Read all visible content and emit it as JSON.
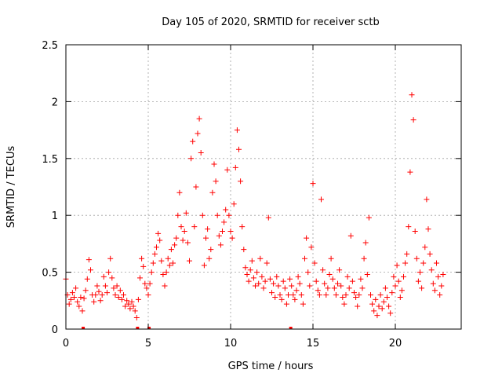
{
  "chart_data": {
    "type": "scatter",
    "title": "Day 105 of 2020, SRMTID for receiver sctb",
    "xlabel": "GPS time / hours",
    "ylabel": "SRMTID / TECUs",
    "xlim": [
      0,
      24
    ],
    "ylim": [
      0,
      2.5
    ],
    "xticks": [
      0,
      5,
      10,
      15,
      20
    ],
    "yticks": [
      0,
      0.5,
      1,
      1.5,
      2,
      2.5
    ],
    "grid": true,
    "marker": "plus",
    "color": "#ff0000",
    "series": [
      {
        "name": "sctb",
        "points": [
          [
            0.0,
            0.44
          ],
          [
            0.1,
            0.3
          ],
          [
            0.2,
            0.22
          ],
          [
            0.3,
            0.26
          ],
          [
            0.4,
            0.32
          ],
          [
            0.5,
            0.28
          ],
          [
            0.6,
            0.36
          ],
          [
            0.7,
            0.24
          ],
          [
            0.8,
            0.2
          ],
          [
            0.9,
            0.28
          ],
          [
            1.0,
            0.16
          ],
          [
            1.1,
            0.27
          ],
          [
            1.2,
            0.34
          ],
          [
            1.3,
            0.44
          ],
          [
            1.4,
            0.61
          ],
          [
            1.5,
            0.52
          ],
          [
            1.6,
            0.3
          ],
          [
            1.7,
            0.24
          ],
          [
            1.8,
            0.3
          ],
          [
            1.9,
            0.38
          ],
          [
            2.0,
            0.33
          ],
          [
            2.1,
            0.25
          ],
          [
            2.2,
            0.3
          ],
          [
            2.3,
            0.46
          ],
          [
            2.4,
            0.38
          ],
          [
            2.5,
            0.32
          ],
          [
            2.6,
            0.5
          ],
          [
            2.7,
            0.62
          ],
          [
            2.8,
            0.45
          ],
          [
            2.9,
            0.36
          ],
          [
            3.0,
            0.3
          ],
          [
            3.1,
            0.38
          ],
          [
            3.2,
            0.28
          ],
          [
            3.3,
            0.34
          ],
          [
            3.4,
            0.26
          ],
          [
            3.5,
            0.3
          ],
          [
            3.6,
            0.2
          ],
          [
            3.7,
            0.25
          ],
          [
            3.8,
            0.22
          ],
          [
            3.9,
            0.18
          ],
          [
            4.0,
            0.24
          ],
          [
            4.1,
            0.2
          ],
          [
            4.2,
            0.16
          ],
          [
            4.3,
            0.1
          ],
          [
            4.4,
            0.26
          ],
          [
            4.5,
            0.45
          ],
          [
            4.6,
            0.62
          ],
          [
            4.7,
            0.55
          ],
          [
            4.8,
            0.4
          ],
          [
            4.9,
            0.36
          ],
          [
            5.0,
            0.3
          ],
          [
            5.1,
            0.4
          ],
          [
            5.2,
            0.5
          ],
          [
            5.3,
            0.58
          ],
          [
            5.4,
            0.66
          ],
          [
            5.5,
            0.72
          ],
          [
            5.6,
            0.84
          ],
          [
            5.7,
            0.78
          ],
          [
            5.8,
            0.6
          ],
          [
            5.9,
            0.48
          ],
          [
            6.0,
            0.38
          ],
          [
            6.1,
            0.5
          ],
          [
            6.2,
            0.62
          ],
          [
            6.3,
            0.56
          ],
          [
            6.4,
            0.7
          ],
          [
            6.5,
            0.58
          ],
          [
            6.6,
            0.74
          ],
          [
            6.7,
            0.8
          ],
          [
            6.8,
            1.0
          ],
          [
            6.9,
            1.2
          ],
          [
            7.0,
            0.9
          ],
          [
            7.1,
            0.78
          ],
          [
            7.2,
            0.86
          ],
          [
            7.3,
            1.02
          ],
          [
            7.4,
            0.76
          ],
          [
            7.5,
            0.6
          ],
          [
            7.6,
            1.5
          ],
          [
            7.7,
            1.65
          ],
          [
            7.8,
            0.9
          ],
          [
            7.9,
            1.25
          ],
          [
            8.0,
            1.72
          ],
          [
            8.1,
            1.85
          ],
          [
            8.2,
            1.55
          ],
          [
            8.3,
            1.0
          ],
          [
            8.4,
            0.56
          ],
          [
            8.5,
            0.8
          ],
          [
            8.6,
            0.88
          ],
          [
            8.7,
            0.62
          ],
          [
            8.8,
            0.7
          ],
          [
            8.9,
            1.2
          ],
          [
            9.0,
            1.45
          ],
          [
            9.1,
            1.3
          ],
          [
            9.2,
            1.0
          ],
          [
            9.3,
            0.82
          ],
          [
            9.4,
            0.74
          ],
          [
            9.5,
            0.86
          ],
          [
            9.6,
            0.94
          ],
          [
            9.7,
            1.05
          ],
          [
            9.8,
            1.4
          ],
          [
            9.9,
            1.0
          ],
          [
            10.0,
            0.86
          ],
          [
            10.1,
            0.8
          ],
          [
            10.2,
            1.1
          ],
          [
            10.3,
            1.42
          ],
          [
            10.4,
            1.75
          ],
          [
            10.5,
            1.58
          ],
          [
            10.6,
            1.3
          ],
          [
            10.7,
            0.9
          ],
          [
            10.8,
            0.7
          ],
          [
            10.9,
            0.54
          ],
          [
            11.0,
            0.48
          ],
          [
            11.1,
            0.42
          ],
          [
            11.2,
            0.52
          ],
          [
            11.3,
            0.6
          ],
          [
            11.4,
            0.45
          ],
          [
            11.5,
            0.38
          ],
          [
            11.6,
            0.5
          ],
          [
            11.7,
            0.4
          ],
          [
            11.8,
            0.62
          ],
          [
            11.9,
            0.46
          ],
          [
            12.0,
            0.36
          ],
          [
            12.1,
            0.42
          ],
          [
            12.2,
            0.58
          ],
          [
            12.3,
            0.98
          ],
          [
            12.4,
            0.44
          ],
          [
            12.5,
            0.32
          ],
          [
            12.6,
            0.4
          ],
          [
            12.7,
            0.28
          ],
          [
            12.8,
            0.46
          ],
          [
            12.9,
            0.38
          ],
          [
            13.0,
            0.3
          ],
          [
            13.1,
            0.26
          ],
          [
            13.2,
            0.42
          ],
          [
            13.3,
            0.36
          ],
          [
            13.4,
            0.22
          ],
          [
            13.5,
            0.3
          ],
          [
            13.6,
            0.44
          ],
          [
            13.7,
            0.38
          ],
          [
            13.8,
            0.3
          ],
          [
            13.9,
            0.26
          ],
          [
            14.0,
            0.34
          ],
          [
            14.1,
            0.46
          ],
          [
            14.2,
            0.4
          ],
          [
            14.3,
            0.3
          ],
          [
            14.4,
            0.22
          ],
          [
            14.5,
            0.62
          ],
          [
            14.6,
            0.8
          ],
          [
            14.7,
            0.5
          ],
          [
            14.8,
            0.38
          ],
          [
            14.9,
            0.72
          ],
          [
            15.0,
            1.28
          ],
          [
            15.1,
            0.58
          ],
          [
            15.2,
            0.42
          ],
          [
            15.3,
            0.34
          ],
          [
            15.4,
            0.3
          ],
          [
            15.5,
            1.14
          ],
          [
            15.6,
            0.52
          ],
          [
            15.7,
            0.4
          ],
          [
            15.8,
            0.3
          ],
          [
            15.9,
            0.36
          ],
          [
            16.0,
            0.48
          ],
          [
            16.1,
            0.62
          ],
          [
            16.2,
            0.44
          ],
          [
            16.3,
            0.36
          ],
          [
            16.4,
            0.3
          ],
          [
            16.5,
            0.4
          ],
          [
            16.6,
            0.52
          ],
          [
            16.7,
            0.38
          ],
          [
            16.8,
            0.28
          ],
          [
            16.9,
            0.22
          ],
          [
            17.0,
            0.3
          ],
          [
            17.1,
            0.46
          ],
          [
            17.2,
            0.36
          ],
          [
            17.3,
            0.82
          ],
          [
            17.4,
            0.42
          ],
          [
            17.5,
            0.32
          ],
          [
            17.6,
            0.28
          ],
          [
            17.7,
            0.2
          ],
          [
            17.8,
            0.3
          ],
          [
            17.9,
            0.44
          ],
          [
            18.0,
            0.36
          ],
          [
            18.1,
            0.62
          ],
          [
            18.2,
            0.76
          ],
          [
            18.3,
            0.48
          ],
          [
            18.4,
            0.98
          ],
          [
            18.5,
            0.3
          ],
          [
            18.6,
            0.22
          ],
          [
            18.7,
            0.16
          ],
          [
            18.8,
            0.26
          ],
          [
            18.9,
            0.12
          ],
          [
            19.0,
            0.2
          ],
          [
            19.1,
            0.3
          ],
          [
            19.2,
            0.18
          ],
          [
            19.3,
            0.24
          ],
          [
            19.4,
            0.36
          ],
          [
            19.5,
            0.28
          ],
          [
            19.6,
            0.2
          ],
          [
            19.7,
            0.14
          ],
          [
            19.8,
            0.32
          ],
          [
            19.9,
            0.46
          ],
          [
            20.0,
            0.38
          ],
          [
            20.1,
            0.56
          ],
          [
            20.2,
            0.42
          ],
          [
            20.3,
            0.28
          ],
          [
            20.4,
            0.34
          ],
          [
            20.5,
            0.46
          ],
          [
            20.6,
            0.58
          ],
          [
            20.7,
            0.66
          ],
          [
            20.8,
            0.9
          ],
          [
            20.9,
            1.38
          ],
          [
            21.0,
            2.06
          ],
          [
            21.1,
            1.84
          ],
          [
            21.2,
            0.86
          ],
          [
            21.3,
            0.62
          ],
          [
            21.4,
            0.42
          ],
          [
            21.5,
            0.5
          ],
          [
            21.6,
            0.36
          ],
          [
            21.7,
            0.58
          ],
          [
            21.8,
            0.72
          ],
          [
            21.9,
            1.14
          ],
          [
            22.0,
            0.88
          ],
          [
            22.1,
            0.66
          ],
          [
            22.2,
            0.52
          ],
          [
            22.3,
            0.4
          ],
          [
            22.4,
            0.34
          ],
          [
            22.5,
            0.58
          ],
          [
            22.6,
            0.46
          ],
          [
            22.7,
            0.3
          ],
          [
            22.8,
            0.38
          ],
          [
            22.9,
            0.48
          ]
        ]
      }
    ],
    "zero_markers_x": [
      1.05,
      4.35,
      5.05,
      13.65
    ]
  }
}
